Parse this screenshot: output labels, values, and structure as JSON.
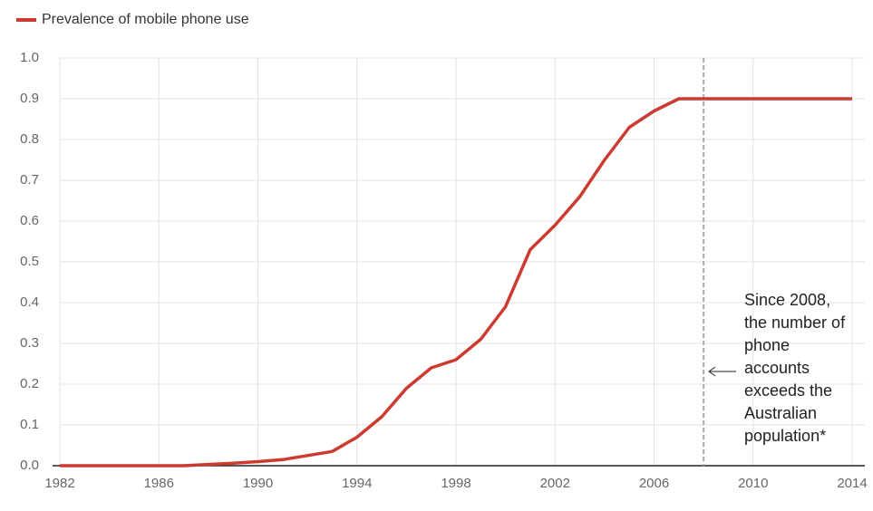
{
  "chart_data": {
    "type": "line",
    "x": [
      1982,
      1983,
      1984,
      1985,
      1986,
      1987,
      1988,
      1989,
      1990,
      1991,
      1992,
      1993,
      1994,
      1995,
      1996,
      1997,
      1998,
      1999,
      2000,
      2001,
      2002,
      2003,
      2004,
      2005,
      2006,
      2007,
      2008,
      2009,
      2010,
      2011,
      2012,
      2013,
      2014
    ],
    "series": [
      {
        "name": "Prevalence of mobile phone use",
        "color": "#cc3a30",
        "values": [
          0,
          0,
          0,
          0,
          0,
          0,
          0.003,
          0.006,
          0.01,
          0.015,
          0.025,
          0.035,
          0.07,
          0.12,
          0.19,
          0.24,
          0.26,
          0.31,
          0.39,
          0.53,
          0.59,
          0.66,
          0.75,
          0.83,
          0.87,
          0.9,
          0.9,
          0.9,
          0.9,
          0.9,
          0.9,
          0.9,
          0.9
        ]
      }
    ],
    "xlim": [
      1982,
      2014
    ],
    "xticks": [
      1982,
      1986,
      1990,
      1994,
      1998,
      2002,
      2006,
      2010,
      2014
    ],
    "ylim": [
      0,
      1
    ],
    "yticks": [
      {
        "value": 0,
        "label": "0.0"
      },
      0.1,
      0.2,
      0.3,
      0.4,
      0.5,
      0.6,
      0.7,
      0.8,
      0.9,
      {
        "value": 1,
        "label": "1.0"
      }
    ],
    "grid": true,
    "legend": "top-left",
    "vline": 2008,
    "annotation": [
      "Since 2008,",
      "the number of",
      "phone",
      "accounts",
      "exceeds the",
      "Australian",
      "population*"
    ]
  }
}
